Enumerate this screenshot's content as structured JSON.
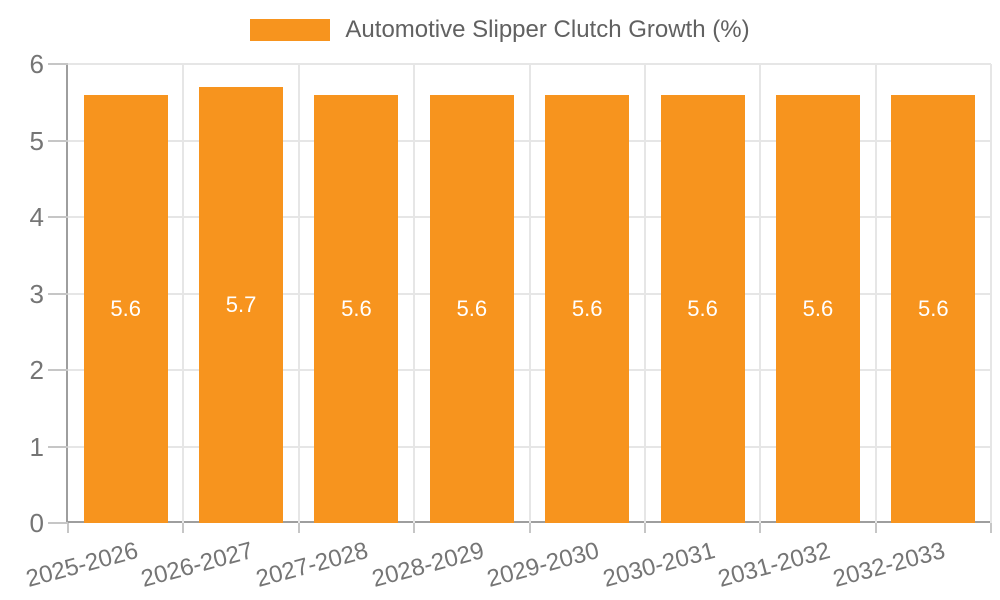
{
  "legend": {
    "label": "Automotive Slipper Clutch Growth (%)"
  },
  "colors": {
    "bar": "#f7941e",
    "grid": "#e6e6e6",
    "axis_line": "#9e9e9e",
    "tick": "#c6c6c6",
    "axis_label_text": "#757575",
    "legend_text": "#616161",
    "bar_label_text": "#ffffff",
    "background": "#ffffff"
  },
  "chart_data": {
    "type": "bar",
    "title": "Automotive Slipper Clutch Growth (%)",
    "categories": [
      "2025-2026",
      "2026-2027",
      "2027-2028",
      "2028-2029",
      "2029-2030",
      "2030-2031",
      "2031-2032",
      "2032-2033"
    ],
    "values": [
      5.6,
      5.7,
      5.6,
      5.6,
      5.6,
      5.6,
      5.6,
      5.6
    ],
    "value_label_decimals": 1,
    "xlabel": "",
    "ylabel": "",
    "ylim": [
      0,
      6
    ],
    "ytick_step": 1,
    "ytick_labels": [
      "0",
      "1",
      "2",
      "3",
      "4",
      "5",
      "6"
    ],
    "grid": true,
    "vertical_gridlines": true,
    "legend_position": "top-center",
    "bar_label_position": "center-inside",
    "xtick_label_rotation_deg": -15
  }
}
